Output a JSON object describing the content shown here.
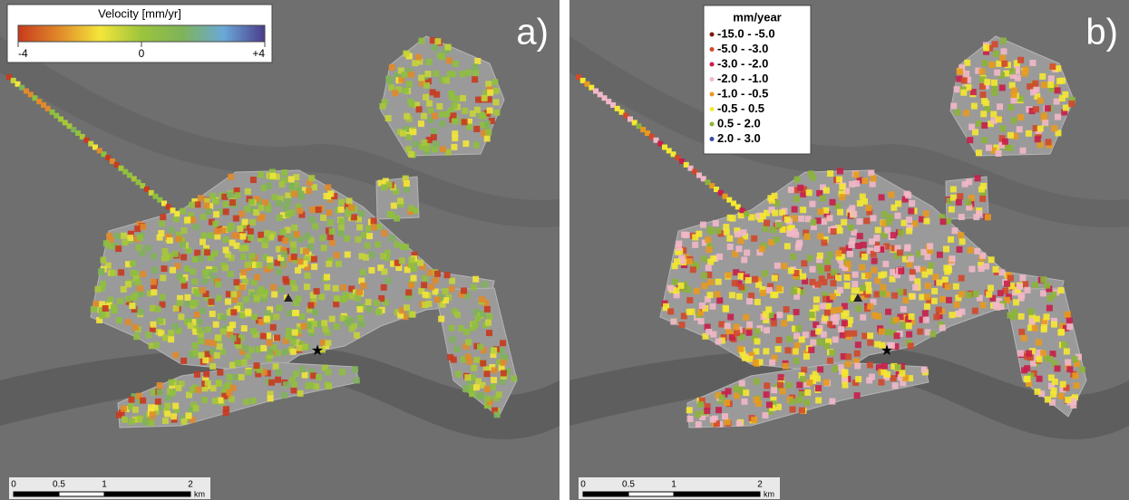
{
  "panels": [
    {
      "label": "a)",
      "legend": {
        "title": "Velocity [mm/yr]",
        "ticks": [
          "-4",
          "0",
          "+4"
        ],
        "colors": [
          "#c83a1e",
          "#e08a2a",
          "#f3e63a",
          "#9cc43c",
          "#7fb35a",
          "#6aa8d8",
          "#4a3c8c"
        ]
      },
      "scale": {
        "ticks": [
          "0",
          "0.5",
          "1",
          "2"
        ],
        "unit": "km"
      }
    },
    {
      "label": "b)",
      "legend": {
        "title": "mm/year",
        "items": [
          {
            "label": "-15.0 - -5.0",
            "color": "#7a1a10"
          },
          {
            "label": "-5.0 - -3.0",
            "color": "#d2482a"
          },
          {
            "label": "-3.0 - -2.0",
            "color": "#c81e4a"
          },
          {
            "label": "-2.0 - -1.0",
            "color": "#f2b8c8"
          },
          {
            "label": "-1.0 - -0.5",
            "color": "#e89a1e"
          },
          {
            "label": "-0.5 -  0.5",
            "color": "#f4e832"
          },
          {
            "label": "0.5 -  2.0",
            "color": "#8cb43a"
          },
          {
            "label": "2.0 -  3.0",
            "color": "#3a4aa8"
          }
        ]
      },
      "scale": {
        "ticks": [
          "0",
          "0.5",
          "1",
          "2"
        ],
        "unit": "km"
      }
    }
  ]
}
